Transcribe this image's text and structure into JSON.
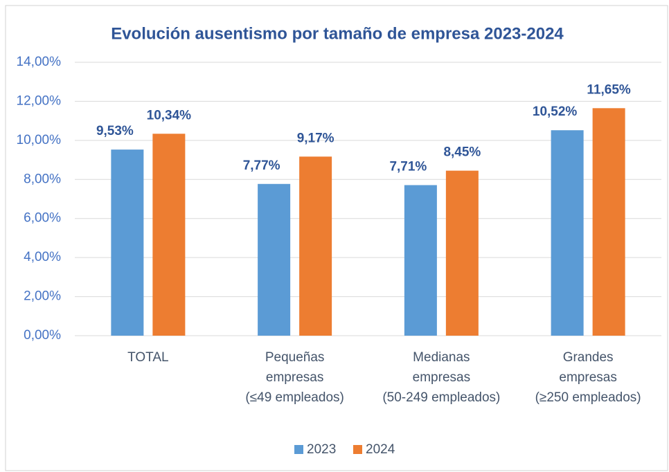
{
  "chart_data": {
    "type": "bar",
    "title": "Evolución ausentismo por tamaño de empresa 2023-2024",
    "categories": [
      "TOTAL",
      "Pequeñas empresas (≤49 empleados)",
      "Medianas empresas (50-249 empleados)",
      "Grandes empresas (≥250 empleados)"
    ],
    "series": [
      {
        "name": "2023",
        "color": "#5b9bd5",
        "values": [
          9.53,
          7.77,
          7.71,
          10.52
        ],
        "value_labels": [
          "9,53%",
          "7,77%",
          "7,71%",
          "10,52%"
        ]
      },
      {
        "name": "2024",
        "color": "#ed7d31",
        "values": [
          10.34,
          9.17,
          8.45,
          11.65
        ],
        "value_labels": [
          "10,34%",
          "9,17%",
          "8,45%",
          "11,65%"
        ]
      }
    ],
    "ylim": [
      0,
      14
    ],
    "yticks": [
      {
        "value": 0,
        "label": "0,00%"
      },
      {
        "value": 2,
        "label": "2,00%"
      },
      {
        "value": 4,
        "label": "4,00%"
      },
      {
        "value": 6,
        "label": "6,00%"
      },
      {
        "value": 8,
        "label": "8,00%"
      },
      {
        "value": 10,
        "label": "10,00%"
      },
      {
        "value": 12,
        "label": "12,00%"
      },
      {
        "value": 14,
        "label": "14,00%"
      }
    ],
    "grid": true,
    "legend": "bottom"
  }
}
